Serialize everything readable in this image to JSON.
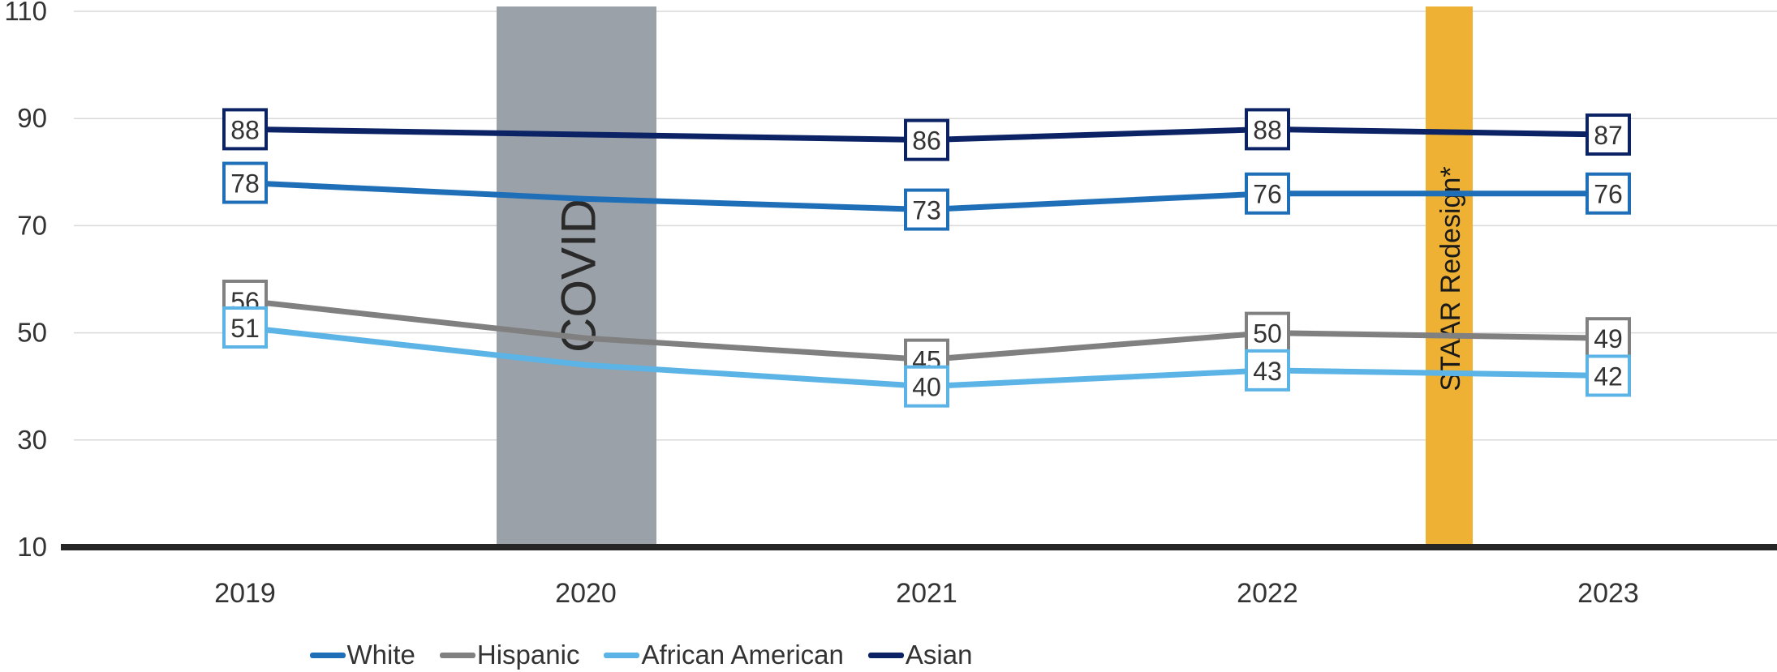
{
  "chart_data": {
    "type": "line",
    "title": "",
    "xlabel": "",
    "ylabel": "",
    "ylim": [
      10,
      110
    ],
    "yticks": [
      10,
      30,
      50,
      70,
      90,
      110
    ],
    "categories": [
      "2019",
      "2020",
      "2021",
      "2022",
      "2023"
    ],
    "grid": true,
    "legend_position": "bottom",
    "series": [
      {
        "name": "White",
        "color": "#1F6FB8",
        "values": [
          78,
          75,
          73,
          76,
          76
        ],
        "labels": [
          "78",
          null,
          "73",
          "76",
          "76"
        ]
      },
      {
        "name": "Hispanic",
        "color": "#808080",
        "values": [
          56,
          49,
          45,
          50,
          49
        ],
        "labels": [
          "56",
          null,
          "45",
          "50",
          "49"
        ]
      },
      {
        "name": "African American",
        "color": "#5BB4E5",
        "values": [
          51,
          44,
          40,
          43,
          42
        ],
        "labels": [
          "51",
          null,
          "40",
          "43",
          "42"
        ]
      },
      {
        "name": "Asian",
        "color": "#0B2265",
        "values": [
          88,
          87,
          86,
          88,
          87
        ],
        "labels": [
          "88",
          null,
          "86",
          "88",
          "87"
        ]
      }
    ],
    "annotations": [
      {
        "label": "COVID",
        "color": "#9BA1A8",
        "text_color": "#2A2A2A"
      },
      {
        "label": "STAAR Redesign*",
        "color": "#EEB134",
        "text_color": "#1A1A1A"
      }
    ]
  }
}
